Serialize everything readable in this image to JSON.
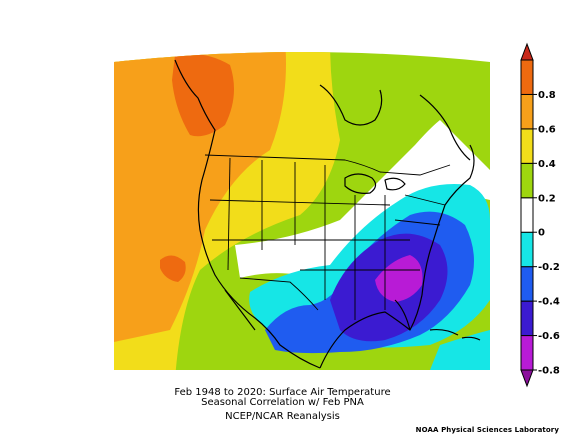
{
  "title": {
    "line1": "Feb 1948 to 2020: Surface Air Temperature",
    "line2": "Seasonal Correlation w/ Feb PNA",
    "line3": "NCEP/NCAR Reanalysis"
  },
  "credit": "NOAA Physical Sciences Laboratory",
  "colorbar": {
    "levels": [
      "-0.8",
      "-0.6",
      "-0.4",
      "-0.2",
      "0",
      "0.2",
      "0.4",
      "0.6",
      "0.8"
    ],
    "colors": [
      "#8b0f9c",
      "#b81bd6",
      "#3b1bd1",
      "#1f5cf0",
      "#16e6e6",
      "#ffffff",
      "#9ed60f",
      "#f2dd1a",
      "#f7a01a",
      "#ee6a10",
      "#c8281a"
    ]
  },
  "map": {
    "region": "North America",
    "field": "correlation coefficient"
  }
}
